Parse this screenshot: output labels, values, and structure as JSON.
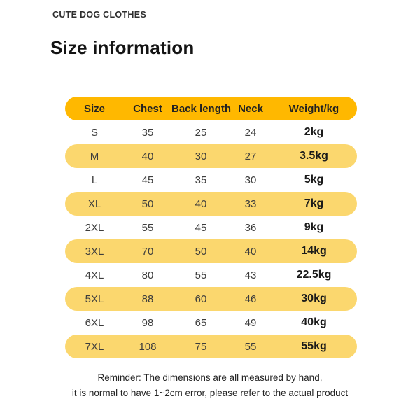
{
  "brand": "CUTE DOG CLOTHES",
  "title": "Size information",
  "table": {
    "headers": [
      "Size",
      "Chest",
      "Back length",
      "Neck",
      "Weight/kg"
    ],
    "rows": [
      {
        "size": "S",
        "chest": "35",
        "back_length": "25",
        "neck": "24",
        "weight": "2kg",
        "highlighted": false
      },
      {
        "size": "M",
        "chest": "40",
        "back_length": "30",
        "neck": "27",
        "weight": "3.5kg",
        "highlighted": true
      },
      {
        "size": "L",
        "chest": "45",
        "back_length": "35",
        "neck": "30",
        "weight": "5kg",
        "highlighted": false
      },
      {
        "size": "XL",
        "chest": "50",
        "back_length": "40",
        "neck": "33",
        "weight": "7kg",
        "highlighted": true
      },
      {
        "size": "2XL",
        "chest": "55",
        "back_length": "45",
        "neck": "36",
        "weight": "9kg",
        "highlighted": false
      },
      {
        "size": "3XL",
        "chest": "70",
        "back_length": "50",
        "neck": "40",
        "weight": "14kg",
        "highlighted": true
      },
      {
        "size": "4XL",
        "chest": "80",
        "back_length": "55",
        "neck": "43",
        "weight": "22.5kg",
        "highlighted": false
      },
      {
        "size": "5XL",
        "chest": "88",
        "back_length": "60",
        "neck": "46",
        "weight": "30kg",
        "highlighted": true
      },
      {
        "size": "6XL",
        "chest": "98",
        "back_length": "65",
        "neck": "49",
        "weight": "40kg",
        "highlighted": false
      },
      {
        "size": "7XL",
        "chest": "108",
        "back_length": "75",
        "neck": "55",
        "weight": "55kg",
        "highlighted": true
      }
    ]
  },
  "footer": {
    "line1": "Reminder: The dimensions are all measured by hand,",
    "line2": "it is normal to have 1~2cm error, please refer to the actual product"
  },
  "colors": {
    "header_row_bg": "#FFB800",
    "highlight_row_bg": "#FBD76E",
    "header_text": "#222222",
    "body_text": "#3d3d3d",
    "weight_text": "#1a1a1a"
  },
  "chart_data": {
    "type": "table",
    "title": "Size information",
    "columns": [
      "Size",
      "Chest",
      "Back length",
      "Neck",
      "Weight/kg"
    ],
    "rows": [
      [
        "S",
        35,
        25,
        24,
        "2kg"
      ],
      [
        "M",
        40,
        30,
        27,
        "3.5kg"
      ],
      [
        "L",
        45,
        35,
        30,
        "5kg"
      ],
      [
        "XL",
        50,
        40,
        33,
        "7kg"
      ],
      [
        "2XL",
        55,
        45,
        36,
        "9kg"
      ],
      [
        "3XL",
        70,
        50,
        40,
        "14kg"
      ],
      [
        "4XL",
        80,
        55,
        43,
        "22.5kg"
      ],
      [
        "5XL",
        88,
        60,
        46,
        "30kg"
      ],
      [
        "6XL",
        98,
        65,
        49,
        "40kg"
      ],
      [
        "7XL",
        108,
        75,
        55,
        "55kg"
      ]
    ]
  }
}
